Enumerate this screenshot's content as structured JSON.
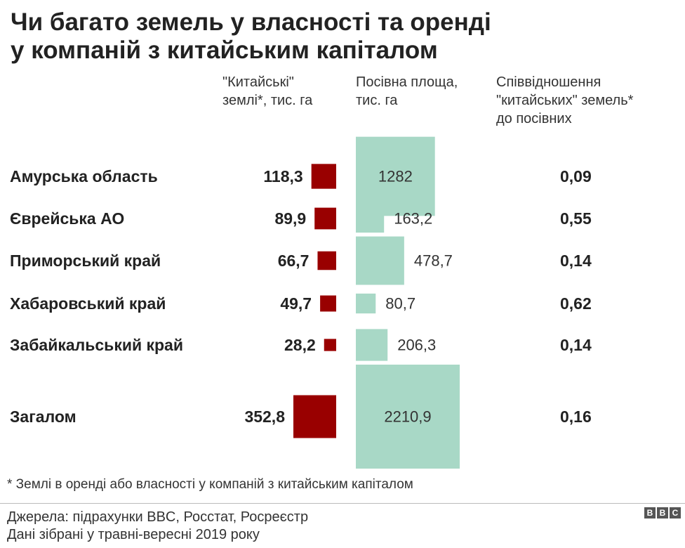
{
  "title": {
    "line1": "Чи багато земель у власності та оренді",
    "line2": "у компаній з китайським капіталом"
  },
  "columns": {
    "land": {
      "line1": "\"Китайські\"",
      "line2": "землі*, тис. га"
    },
    "sown": {
      "line1": "Посівна площа,",
      "line2": "тис. га"
    },
    "ratio": {
      "line1": "Співвідношення",
      "line2": "\"китайських\" земель*",
      "line3": "до посівних"
    }
  },
  "chart_data": {
    "type": "table",
    "columns": [
      "\"Китайські\" землі*, тис. га",
      "Посівна площа, тис. га",
      "Співвідношення \"китайських\" земель* до посівних"
    ],
    "rows": [
      {
        "region": "Амурська область",
        "chinese_land": 118.3,
        "chinese_land_label": "118,3",
        "sown_area": 1282,
        "sown_area_label": "1282",
        "ratio": "0,09"
      },
      {
        "region": "Єврейська АО",
        "chinese_land": 89.9,
        "chinese_land_label": "89,9",
        "sown_area": 163.2,
        "sown_area_label": "163,2",
        "ratio": "0,55"
      },
      {
        "region": "Приморський край",
        "chinese_land": 66.7,
        "chinese_land_label": "66,7",
        "sown_area": 478.7,
        "sown_area_label": "478,7",
        "ratio": "0,14"
      },
      {
        "region": "Хабаровський край",
        "chinese_land": 49.7,
        "chinese_land_label": "49,7",
        "sown_area": 80.7,
        "sown_area_label": "80,7",
        "ratio": "0,62"
      },
      {
        "region": "Забайкальський край",
        "chinese_land": 28.2,
        "chinese_land_label": "28,2",
        "sown_area": 206.3,
        "sown_area_label": "206,3",
        "ratio": "0,14"
      }
    ],
    "total": {
      "region": "Загалом",
      "chinese_land": 352.8,
      "chinese_land_label": "352,8",
      "sown_area": 2210.9,
      "sown_area_label": "2210,9",
      "ratio": "0,16"
    },
    "colors": {
      "chinese_land": "#990000",
      "sown_area": "#a8d8c6"
    }
  },
  "footnote": "* Землі в оренді або власності у компаній з китайським капіталом",
  "sources": {
    "line1": "Джерела: підрахунки BBC, Росстат, Росреєстр",
    "line2": "Дані зібрані у травні-вересні 2019 року"
  },
  "logo": {
    "letters": [
      "B",
      "B",
      "C"
    ]
  }
}
